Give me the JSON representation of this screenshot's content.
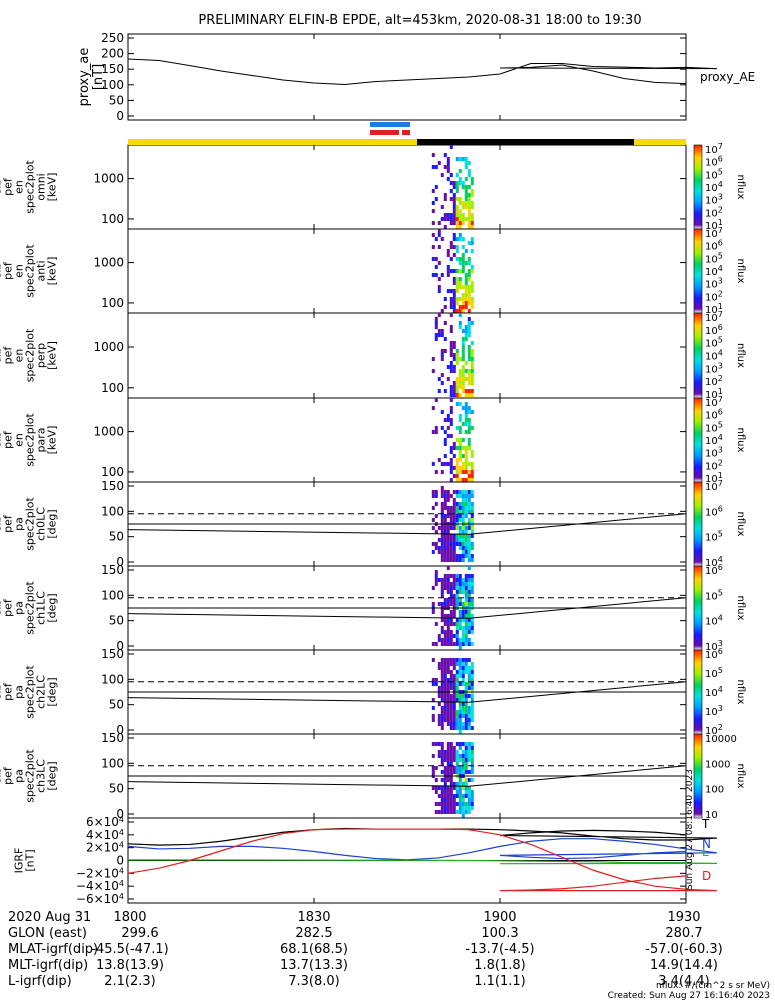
{
  "title": "PRELIMINARY ELFIN-B EPDE, alt=453km, 2020-08-31 18:00 to 19:30",
  "colors": {
    "black": "#000000",
    "bar_yellow": "#f5d90a",
    "blue_marker": "#1e7de0",
    "red_marker": "#e0201e",
    "n_blue": "#1a40d0",
    "l_green": "#22b222",
    "d_red": "#e02020"
  },
  "chart_data": [
    {
      "type": "line",
      "ylabel": "proxy_ae [nT]",
      "legend": "proxy_AE",
      "yticks": [
        "250",
        "200",
        "150",
        "100",
        "50",
        "0"
      ],
      "ylim": [
        0,
        260
      ],
      "x": [
        1800,
        1805,
        1810,
        1815,
        1820,
        1825,
        1830,
        1835,
        1840,
        1845,
        1850,
        1855,
        1860,
        1865,
        1870,
        1875,
        1880,
        1885,
        1890,
        1895,
        1900,
        1905,
        1910,
        1915,
        1920,
        1925,
        1930
      ],
      "values": [
        190,
        185,
        168,
        150,
        135,
        120,
        110,
        105,
        115,
        120,
        125,
        130,
        140,
        175,
        175,
        165,
        163,
        160,
        162,
        158,
        160,
        162,
        170,
        150,
        125,
        112,
        108
      ]
    },
    {
      "type": "heatmap",
      "ylabel": "elb pef en spec2plot omni [keV]",
      "yticks": [
        "1000",
        "100"
      ],
      "colorbar": {
        "label": "nflux",
        "ticks": [
          "10^7",
          "10^6",
          "10^5",
          "10^4",
          "10^3",
          "10^2",
          "10^1"
        ]
      }
    },
    {
      "type": "heatmap",
      "ylabel": "elb pef en spec2plot anti [keV]",
      "yticks": [
        "1000",
        "100"
      ],
      "colorbar": {
        "label": "nflux",
        "ticks": [
          "10^7",
          "10^6",
          "10^5",
          "10^4",
          "10^3",
          "10^2",
          "10^1"
        ]
      }
    },
    {
      "type": "heatmap",
      "ylabel": "elb pef en spec2plot perp [keV]",
      "yticks": [
        "1000",
        "100"
      ],
      "colorbar": {
        "label": "nflux",
        "ticks": [
          "10^7",
          "10^6",
          "10^5",
          "10^4",
          "10^3",
          "10^2",
          "10^1"
        ]
      }
    },
    {
      "type": "heatmap",
      "ylabel": "elb pef en spec2plot para [keV]",
      "yticks": [
        "1000",
        "100"
      ],
      "colorbar": {
        "label": "nflux",
        "ticks": [
          "10^7",
          "10^6",
          "10^5",
          "10^4",
          "10^3",
          "10^2",
          "10^1"
        ]
      }
    },
    {
      "type": "heatmap",
      "ylabel": "elb pef pa spec2plot ch0LC [deg]",
      "yticks": [
        "150",
        "100",
        "50",
        "0"
      ],
      "colorbar": {
        "label": "nflux",
        "ticks": [
          "10^7",
          "10^6",
          "10^5",
          "10^4"
        ]
      }
    },
    {
      "type": "heatmap",
      "ylabel": "elb pef pa spec2plot ch1LC [deg]",
      "yticks": [
        "150",
        "100",
        "50",
        "0"
      ],
      "colorbar": {
        "label": "nflux",
        "ticks": [
          "10^6",
          "10^5",
          "10^4",
          "10^3"
        ]
      }
    },
    {
      "type": "heatmap",
      "ylabel": "elb pef pa spec2plot ch2LC [deg]",
      "yticks": [
        "150",
        "100",
        "50",
        "0"
      ],
      "colorbar": {
        "label": "nflux",
        "ticks": [
          "10^6",
          "10^5",
          "10^4",
          "10^3",
          "10^2"
        ]
      }
    },
    {
      "type": "heatmap",
      "ylabel": "elb pef pa spec2plot ch3LC [deg]",
      "yticks": [
        "150",
        "100",
        "50",
        "0"
      ],
      "colorbar": {
        "label": "nflux",
        "ticks": [
          "10000",
          "1000",
          "100",
          "10"
        ]
      }
    },
    {
      "type": "line",
      "ylabel": "IGRF [nT]",
      "yticks": [
        "6×10^4",
        "4×10^4",
        "2×10^4",
        "0",
        "−2×10^4",
        "−4×10^4",
        "−6×10^4"
      ],
      "ylim": [
        -60000,
        60000
      ],
      "x": [
        1800,
        1805,
        1810,
        1815,
        1820,
        1825,
        1830,
        1835,
        1840,
        1845,
        1850,
        1855,
        1860,
        1865,
        1870,
        1875,
        1880,
        1885,
        1890,
        1895,
        1900,
        1905,
        1910,
        1915,
        1920,
        1925,
        1930
      ],
      "series": [
        {
          "name": "T",
          "values": [
            26000,
            24000,
            25000,
            30000,
            37000,
            44000,
            48000,
            50000,
            49000,
            49000,
            49000,
            49000,
            48000,
            46000,
            43000,
            38000,
            34000,
            32000,
            32000,
            35000,
            39000,
            43000,
            46000,
            47000,
            46000,
            44000,
            40000
          ]
        },
        {
          "name": "N",
          "values": [
            22000,
            18000,
            19000,
            22000,
            22000,
            19000,
            14000,
            8000,
            3000,
            1000,
            4000,
            12000,
            22000,
            30000,
            34000,
            34000,
            30000,
            25000,
            18000,
            12000,
            8000,
            5000,
            3000,
            4000,
            8000,
            12000,
            14000
          ]
        },
        {
          "name": "L",
          "values": [
            1000,
            1000,
            900,
            900,
            800,
            700,
            600,
            500,
            400,
            300,
            200,
            0,
            -500,
            -1000,
            -1500,
            -2000,
            -3000,
            -3500,
            -4000,
            -4500,
            -5000,
            -5000,
            -5000,
            -5000,
            -4500,
            -4000,
            -3000
          ]
        },
        {
          "name": "D",
          "values": [
            -20000,
            -12000,
            0,
            15000,
            30000,
            42000,
            48000,
            49000,
            49000,
            49000,
            49000,
            48000,
            40000,
            25000,
            5000,
            -15000,
            -30000,
            -40000,
            -45000,
            -47000,
            -47000,
            -46000,
            -44000,
            -40000,
            -34000,
            -28000,
            -24000
          ]
        }
      ],
      "legend": [
        "T",
        "N",
        "L",
        "D"
      ]
    }
  ],
  "xaxis": {
    "ticks": [
      "1800",
      "1830",
      "1900",
      "1930"
    ],
    "rows": [
      {
        "label": "2020 Aug 31",
        "values": [
          "1800",
          "1830",
          "1900",
          "1930"
        ]
      },
      {
        "label": "GLON (east)",
        "values": [
          "299.6",
          "282.5",
          "100.3",
          "280.7"
        ]
      },
      {
        "label": "MLAT-igrf(dip)",
        "values": [
          "-45.5(-47.1)",
          "68.1(68.5)",
          "-13.7(-4.5)",
          "-57.0(-60.3)"
        ]
      },
      {
        "label": "MLT-igrf(dip)",
        "values": [
          "13.8(13.9)",
          "13.7(13.3)",
          "1.8(1.8)",
          "14.9(14.4)"
        ]
      },
      {
        "label": "L-igrf(dip)",
        "values": [
          "2.1(2.3)",
          "7.3(8.0)",
          "1.1(1.1)",
          "3.4(4.4)"
        ]
      }
    ]
  },
  "footer": {
    "units": "nflux: #/(cm^2 s sr MeV)",
    "created": "Created: Sun Aug 27 16:16:40 2023",
    "side_stamp": "Sun Aug 27 08:16:40 2023"
  }
}
